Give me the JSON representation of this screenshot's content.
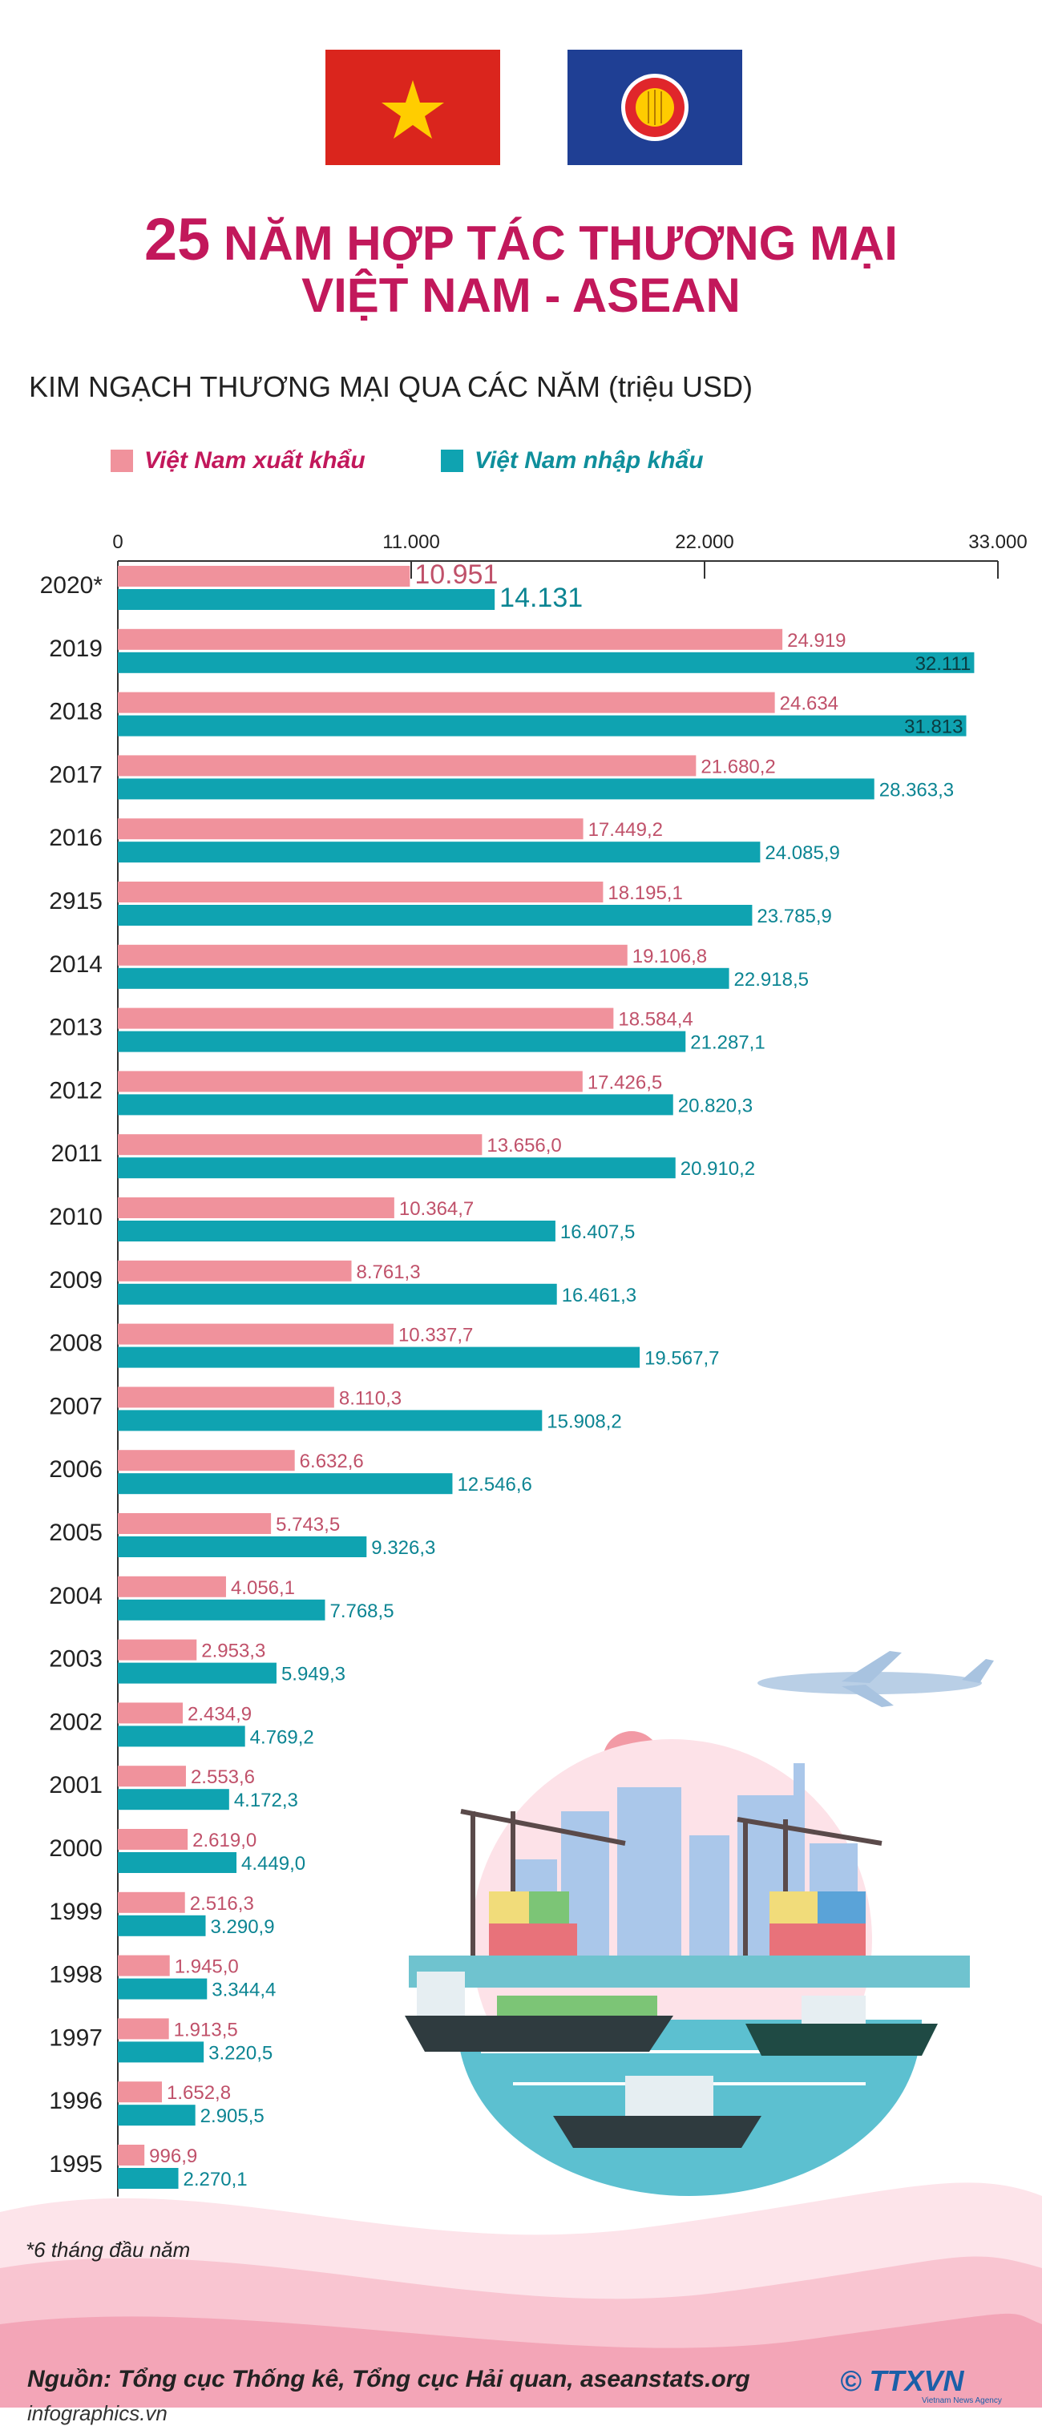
{
  "header": {
    "title_number": "25",
    "title_line1_rest": " NĂM HỢP TÁC THƯƠNG MẠI",
    "title_line2": "VIỆT NAM - ASEAN",
    "subtitle": "KIM NGẠCH THƯƠNG MẠI QUA CÁC NĂM (triệu USD)"
  },
  "legend": {
    "export": "Việt Nam xuất khẩu",
    "import": "Việt Nam nhập khẩu"
  },
  "colors": {
    "export": "#f0929c",
    "import": "#0fa3b1",
    "export_text": "#c0516a",
    "import_text": "#0c8593",
    "title": "#c2185b"
  },
  "chart_data": {
    "type": "bar",
    "orientation": "horizontal",
    "title": "KIM NGẠCH THƯƠNG MẠI QUA CÁC NĂM (triệu USD)",
    "xlim": [
      0,
      33000
    ],
    "ticks": [
      0,
      11000,
      22000,
      33000
    ],
    "tick_labels": [
      "0",
      "11.000",
      "22.000",
      "33.000"
    ],
    "categories": [
      "2020*",
      "2019",
      "2018",
      "2017",
      "2016",
      "2915",
      "2014",
      "2013",
      "2012",
      "2011",
      "2010",
      "2009",
      "2008",
      "2007",
      "2006",
      "2005",
      "2004",
      "2003",
      "2002",
      "2001",
      "2000",
      "1999",
      "1998",
      "1997",
      "1996",
      "1995"
    ],
    "series": [
      {
        "name": "Việt Nam xuất khẩu",
        "values": [
          10951,
          24919,
          24634,
          21680.2,
          17449.2,
          18195.1,
          19106.8,
          18584.4,
          17426.5,
          13656.0,
          10364.7,
          8761.3,
          10337.7,
          8110.3,
          6632.6,
          5743.5,
          4056.1,
          2953.3,
          2434.9,
          2553.6,
          2619.0,
          2516.3,
          1945.0,
          1913.5,
          1652.8,
          996.9
        ],
        "labels": [
          "10.951",
          "24.919",
          "24.634",
          "21.680,2",
          "17.449,2",
          "18.195,1",
          "19.106,8",
          "18.584,4",
          "17.426,5",
          "13.656,0",
          "10.364,7",
          "8.761,3",
          "10.337,7",
          "8.110,3",
          "6.632,6",
          "5.743,5",
          "4.056,1",
          "2.953,3",
          "2.434,9",
          "2.553,6",
          "2.619,0",
          "2.516,3",
          "1.945,0",
          "1.913,5",
          "1.652,8",
          "996,9"
        ]
      },
      {
        "name": "Việt Nam nhập khẩu",
        "values": [
          14131,
          32111,
          31813,
          28363.3,
          24085.9,
          23785.9,
          22918.5,
          21287.1,
          20820.3,
          20910.2,
          16407.5,
          16461.3,
          19567.7,
          15908.2,
          12546.6,
          9326.3,
          7768.5,
          5949.3,
          4769.2,
          4172.3,
          4449.0,
          3290.9,
          3344.4,
          3220.5,
          2905.5,
          2270.1
        ],
        "labels": [
          "14.131",
          "32.111",
          "31.813",
          "28.363,3",
          "24.085,9",
          "23.785,9",
          "22.918,5",
          "21.287,1",
          "20.820,3",
          "20.910,2",
          "16.407,5",
          "16.461,3",
          "19.567,7",
          "15.908,2",
          "12.546,6",
          "9.326,3",
          "7.768,5",
          "5.949,3",
          "4.769,2",
          "4.172,3",
          "4.449,0",
          "3.290,9",
          "3.344,4",
          "3.220,5",
          "2.905,5",
          "2.270,1"
        ]
      }
    ]
  },
  "footnote": "*6 tháng đầu năm",
  "source": "Nguồn: Tổng cục Thống kê, Tổng cục Hải quan, aseanstats.org",
  "site": "infographics.vn",
  "brand": "© TTXVN",
  "brand_sub": "Vietnam News Agency"
}
